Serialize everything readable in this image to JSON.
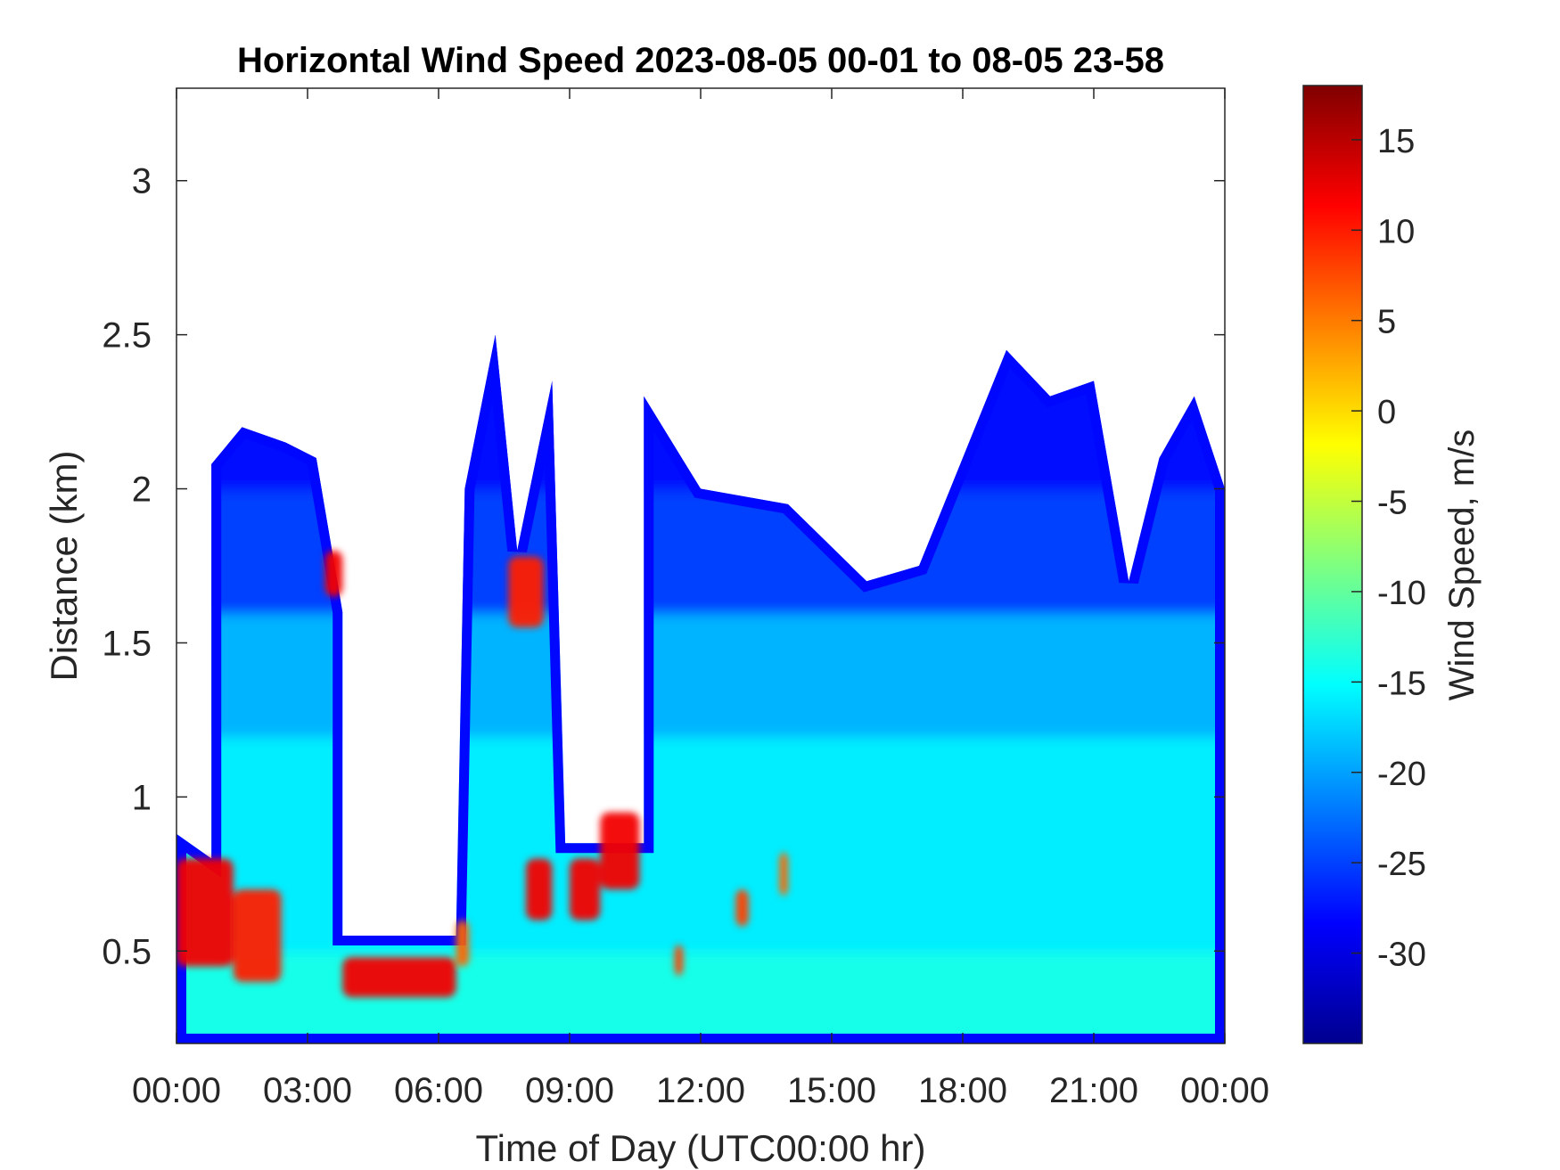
{
  "chart_data": {
    "type": "heatmap",
    "title": "Horizontal Wind Speed 2023-08-05 00-01 to 08-05 23-58",
    "xlabel": "Time of Day (UTC00:00 hr)",
    "ylabel": "Distance (km)",
    "colorbar_label": "Wind Speed, m/s",
    "xlim_hours": [
      0,
      24
    ],
    "ylim_km": [
      0.2,
      3.3
    ],
    "x_ticks": [
      {
        "hour": 0,
        "label": "00:00"
      },
      {
        "hour": 3,
        "label": "03:00"
      },
      {
        "hour": 6,
        "label": "06:00"
      },
      {
        "hour": 9,
        "label": "09:00"
      },
      {
        "hour": 12,
        "label": "12:00"
      },
      {
        "hour": 15,
        "label": "15:00"
      },
      {
        "hour": 18,
        "label": "18:00"
      },
      {
        "hour": 21,
        "label": "21:00"
      },
      {
        "hour": 24,
        "label": "00:00"
      }
    ],
    "y_ticks": [
      {
        "km": 0.5,
        "label": "0.5"
      },
      {
        "km": 1,
        "label": "1"
      },
      {
        "km": 1.5,
        "label": "1.5"
      },
      {
        "km": 2,
        "label": "2"
      },
      {
        "km": 2.5,
        "label": "2.5"
      },
      {
        "km": 3,
        "label": "3"
      }
    ],
    "colorbar_range": [
      -35,
      18
    ],
    "colorbar_ticks": [
      {
        "value": 15,
        "label": "15"
      },
      {
        "value": 10,
        "label": "10"
      },
      {
        "value": 5,
        "label": "5"
      },
      {
        "value": 0,
        "label": "0"
      },
      {
        "value": -5,
        "label": "-5"
      },
      {
        "value": -10,
        "label": "-10"
      },
      {
        "value": -15,
        "label": "-15"
      },
      {
        "value": -20,
        "label": "-20"
      },
      {
        "value": -25,
        "label": "-25"
      },
      {
        "value": -30,
        "label": "-30"
      }
    ],
    "colormap": "jet",
    "data_top_profile": [
      {
        "hour": 0.0,
        "top_km": 0.88
      },
      {
        "hour": 0.8,
        "top_km": 0.8
      },
      {
        "hour": 0.8,
        "top_km": 2.08
      },
      {
        "hour": 1.5,
        "top_km": 2.2
      },
      {
        "hour": 2.5,
        "top_km": 2.15
      },
      {
        "hour": 3.2,
        "top_km": 2.1
      },
      {
        "hour": 3.8,
        "top_km": 1.6
      },
      {
        "hour": 3.8,
        "top_km": 0.55
      },
      {
        "hour": 6.4,
        "top_km": 0.55
      },
      {
        "hour": 6.6,
        "top_km": 2.0
      },
      {
        "hour": 7.3,
        "top_km": 2.5
      },
      {
        "hour": 7.8,
        "top_km": 1.8
      },
      {
        "hour": 8.6,
        "top_km": 2.35
      },
      {
        "hour": 8.9,
        "top_km": 0.85
      },
      {
        "hour": 10.7,
        "top_km": 0.85
      },
      {
        "hour": 10.7,
        "top_km": 2.3
      },
      {
        "hour": 12.0,
        "top_km": 2.0
      },
      {
        "hour": 14.0,
        "top_km": 1.95
      },
      {
        "hour": 15.8,
        "top_km": 1.7
      },
      {
        "hour": 17.0,
        "top_km": 1.75
      },
      {
        "hour": 18.0,
        "top_km": 2.1
      },
      {
        "hour": 19.0,
        "top_km": 2.45
      },
      {
        "hour": 20.0,
        "top_km": 2.3
      },
      {
        "hour": 21.0,
        "top_km": 2.35
      },
      {
        "hour": 21.8,
        "top_km": 1.7
      },
      {
        "hour": 22.5,
        "top_km": 2.1
      },
      {
        "hour": 23.3,
        "top_km": 2.3
      },
      {
        "hour": 24.0,
        "top_km": 2.0
      }
    ],
    "wind_speed_layers": [
      {
        "from_km": 0.2,
        "to_km": 0.5,
        "speed_ms": -14
      },
      {
        "from_km": 0.5,
        "to_km": 1.2,
        "speed_ms": -16
      },
      {
        "from_km": 1.2,
        "to_km": 1.6,
        "speed_ms": -19
      },
      {
        "from_km": 1.6,
        "to_km": 2.0,
        "speed_ms": -25
      },
      {
        "from_km": 2.0,
        "to_km": 2.6,
        "speed_ms": -28
      }
    ],
    "strong_wind_features": [
      {
        "hour_from": 0.0,
        "hour_to": 1.3,
        "km_from": 0.45,
        "km_to": 0.8,
        "speed_ms": 12
      },
      {
        "hour_from": 1.3,
        "hour_to": 2.4,
        "km_from": 0.4,
        "km_to": 0.7,
        "speed_ms": 10
      },
      {
        "hour_from": 3.4,
        "hour_to": 3.8,
        "km_from": 1.65,
        "km_to": 1.8,
        "speed_ms": 12
      },
      {
        "hour_from": 3.8,
        "hour_to": 6.4,
        "km_from": 0.35,
        "km_to": 0.48,
        "speed_ms": 12
      },
      {
        "hour_from": 6.4,
        "hour_to": 6.7,
        "km_from": 0.45,
        "km_to": 0.6,
        "speed_ms": 6
      },
      {
        "hour_from": 7.6,
        "hour_to": 8.4,
        "km_from": 1.55,
        "km_to": 1.78,
        "speed_ms": 10
      },
      {
        "hour_from": 8.0,
        "hour_to": 8.6,
        "km_from": 0.6,
        "km_to": 0.8,
        "speed_ms": 12
      },
      {
        "hour_from": 9.0,
        "hour_to": 9.7,
        "km_from": 0.6,
        "km_to": 0.8,
        "speed_ms": 12
      },
      {
        "hour_from": 9.7,
        "hour_to": 10.6,
        "km_from": 0.7,
        "km_to": 0.95,
        "speed_ms": 12
      },
      {
        "hour_from": 11.4,
        "hour_to": 11.6,
        "km_from": 0.42,
        "km_to": 0.52,
        "speed_ms": 8
      },
      {
        "hour_from": 12.8,
        "hour_to": 13.1,
        "km_from": 0.58,
        "km_to": 0.7,
        "speed_ms": 8
      },
      {
        "hour_from": 13.8,
        "hour_to": 14.0,
        "km_from": 0.68,
        "km_to": 0.82,
        "speed_ms": 6
      }
    ],
    "grid": false,
    "legend": "colorbar-right"
  }
}
